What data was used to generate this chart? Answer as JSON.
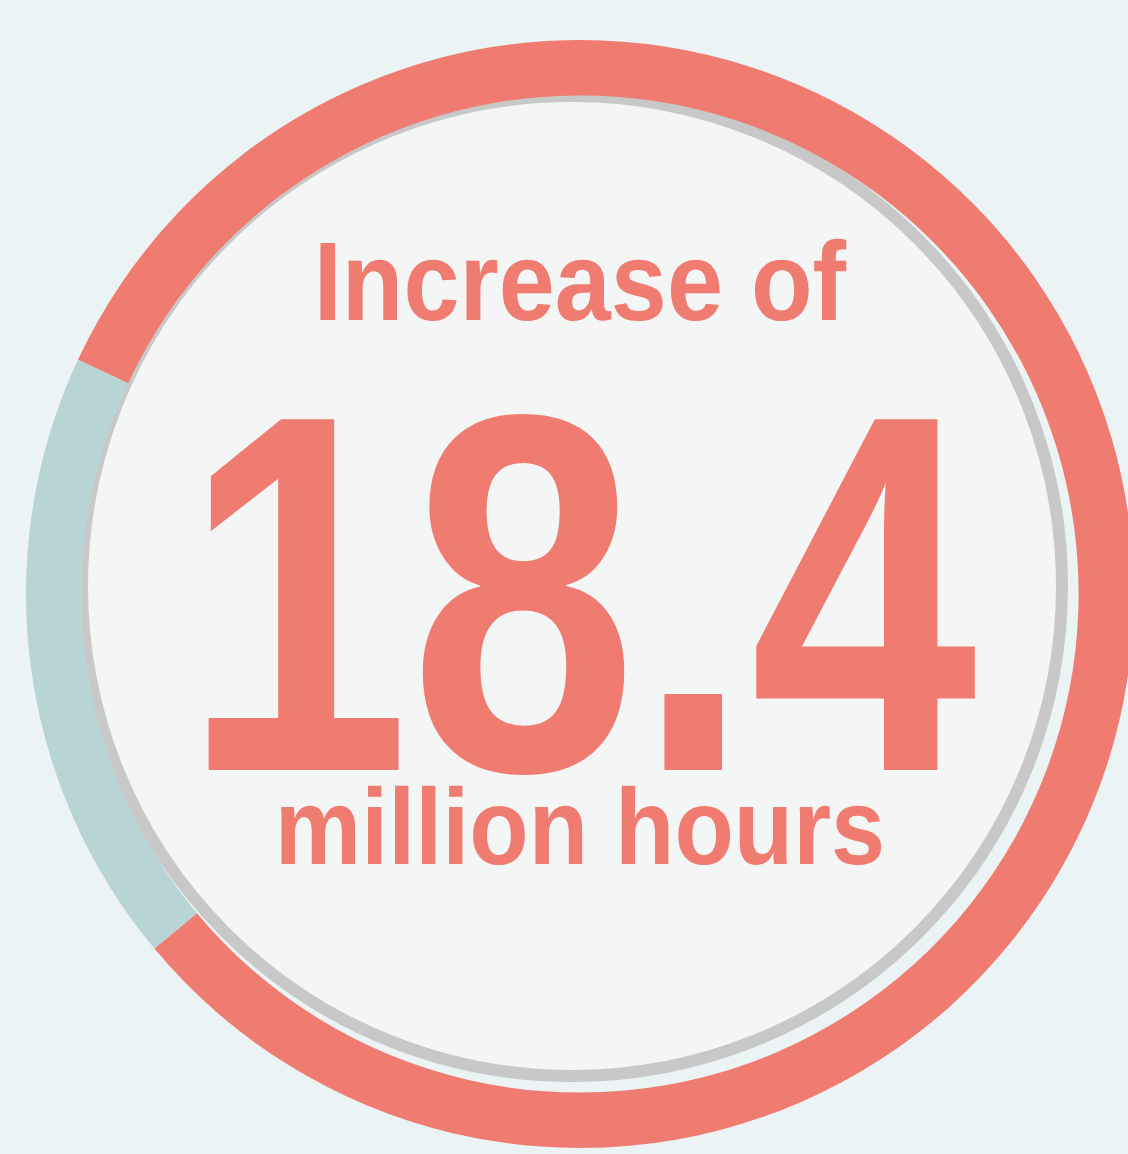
{
  "chart_data": {
    "type": "donut",
    "categories": [
      null,
      null
    ],
    "values": [
      82,
      18
    ],
    "colors": [
      "#f07b70",
      "#b9d4d4"
    ],
    "legend": false,
    "annotations": [
      "Increase of",
      "18.4",
      "million hours"
    ]
  }
}
